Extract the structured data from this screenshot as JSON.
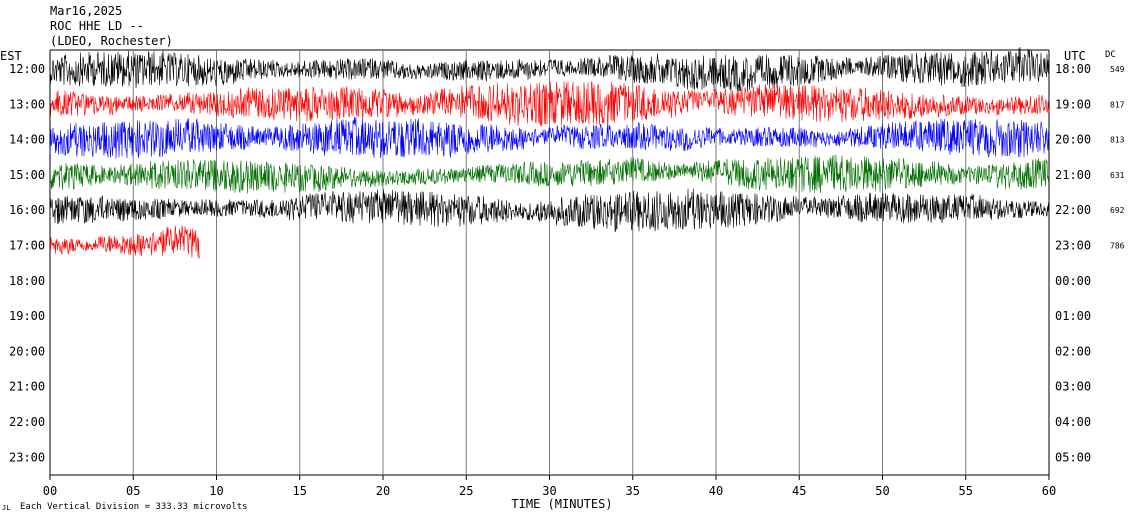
{
  "header": {
    "date": "Mar16,2025",
    "station": "ROC HHE LD --",
    "network": "(LDEO, Rochester)"
  },
  "left_axis_label": "EST",
  "right_axis_label": "UTC",
  "dc_label": "DC",
  "footer": {
    "xlabel": "TIME (MINUTES)",
    "scale_note": "Each Vertical Division =  333.33 microvolts"
  },
  "chart_data": {
    "type": "line",
    "title": "ROC HHE LD --",
    "xlabel": "TIME (MINUTES)",
    "xlim": [
      0,
      60
    ],
    "x_ticks": [
      "00",
      "05",
      "10",
      "15",
      "20",
      "25",
      "30",
      "35",
      "40",
      "45",
      "50",
      "55",
      "60"
    ],
    "est_labels": [
      "12:00",
      "13:00",
      "14:00",
      "15:00",
      "16:00",
      "17:00",
      "18:00",
      "19:00",
      "20:00",
      "21:00",
      "22:00",
      "23:00"
    ],
    "utc_labels": [
      "18:00",
      "19:00",
      "20:00",
      "21:00",
      "22:00",
      "23:00",
      "00:00",
      "01:00",
      "02:00",
      "03:00",
      "04:00",
      "05:00"
    ],
    "dc_values": [
      "549",
      "817",
      "813",
      "631",
      "692",
      "786"
    ],
    "trace_colors": [
      "#000000",
      "#ff0000",
      "#0000ff",
      "#007000",
      "#000000",
      "#ff0000"
    ],
    "trace_end_minutes": [
      60,
      60,
      60,
      60,
      60,
      9
    ],
    "trace_amplitude": [
      0.55,
      0.65,
      0.6,
      0.55,
      0.6,
      0.5
    ]
  }
}
